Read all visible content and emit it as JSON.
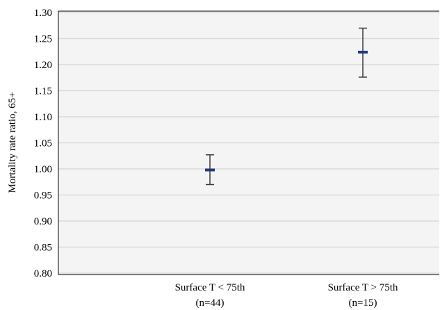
{
  "chart_data": {
    "type": "scatter",
    "title": "",
    "xlabel": "",
    "ylabel": "Mortality rate ratio, 65+",
    "ylim": [
      0.8,
      1.3
    ],
    "yticks": [
      "0.80",
      "0.85",
      "0.90",
      "0.95",
      "1.00",
      "1.05",
      "1.10",
      "1.15",
      "1.20",
      "1.25",
      "1.30"
    ],
    "grid": true,
    "legend": "none",
    "categories": [
      {
        "line1": "Surface T < 75th",
        "line2": "(n=44)"
      },
      {
        "line1": "Surface T > 75th",
        "line2": "(n=15)"
      }
    ],
    "points": [
      {
        "estimate": 0.998,
        "lower": 0.97,
        "upper": 1.027
      },
      {
        "estimate": 1.224,
        "lower": 1.176,
        "upper": 1.27
      }
    ],
    "colors": {
      "plot_background": "#f4f4f4",
      "gridline": "#d9d9d9",
      "estimate_marker": "#1f3a7a",
      "error_bar": "#3a3a3a"
    }
  }
}
